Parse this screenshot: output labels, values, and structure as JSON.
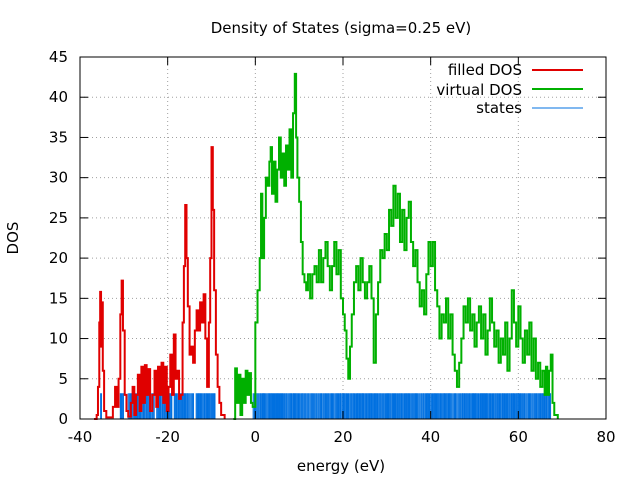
{
  "chart_data": {
    "type": "line",
    "title": "Density of States (sigma=0.25 eV)",
    "xlabel": "energy (eV)",
    "ylabel": "DOS",
    "xlim": [
      -40,
      80
    ],
    "ylim": [
      0,
      45
    ],
    "x_ticks": [
      -40,
      -20,
      0,
      20,
      40,
      60,
      80
    ],
    "y_ticks": [
      0,
      5,
      10,
      15,
      20,
      25,
      30,
      35,
      40,
      45
    ],
    "grid": true,
    "legend_position": "top-right",
    "series": [
      {
        "name": "filled DOS",
        "color": "#e00000",
        "style": "line",
        "points": [
          [
            -36.8,
            0
          ],
          [
            -36.2,
            0.5
          ],
          [
            -35.9,
            4
          ],
          [
            -35.6,
            12
          ],
          [
            -35.4,
            15.8
          ],
          [
            -35.2,
            9
          ],
          [
            -35.0,
            14.5
          ],
          [
            -34.8,
            6
          ],
          [
            -34.5,
            1
          ],
          [
            -34.0,
            0.2
          ],
          [
            -33.0,
            0.2
          ],
          [
            -32.5,
            1.5
          ],
          [
            -32.0,
            4
          ],
          [
            -31.6,
            1.5
          ],
          [
            -31.2,
            5
          ],
          [
            -30.8,
            13
          ],
          [
            -30.5,
            17.2
          ],
          [
            -30.2,
            11
          ],
          [
            -29.8,
            3
          ],
          [
            -29.4,
            1
          ],
          [
            -29.0,
            0.3
          ],
          [
            -28.4,
            2
          ],
          [
            -28.0,
            4
          ],
          [
            -27.6,
            0.5
          ],
          [
            -27.2,
            3
          ],
          [
            -26.8,
            5.5
          ],
          [
            -26.4,
            1
          ],
          [
            -26.0,
            6.5
          ],
          [
            -25.6,
            2
          ],
          [
            -25.2,
            6.7
          ],
          [
            -24.8,
            3
          ],
          [
            -24.4,
            6.2
          ],
          [
            -24.0,
            1
          ],
          [
            -23.5,
            3
          ],
          [
            -23.0,
            6
          ],
          [
            -22.6,
            1.5
          ],
          [
            -22.2,
            6.5
          ],
          [
            -21.8,
            3
          ],
          [
            -21.4,
            7
          ],
          [
            -21.0,
            2
          ],
          [
            -20.6,
            6.5
          ],
          [
            -20.2,
            1
          ],
          [
            -19.8,
            4
          ],
          [
            -19.4,
            8
          ],
          [
            -19.0,
            3
          ],
          [
            -18.6,
            10.5
          ],
          [
            -18.2,
            5
          ],
          [
            -17.8,
            6
          ],
          [
            -17.4,
            2.5
          ],
          [
            -17.0,
            3
          ],
          [
            -16.6,
            12
          ],
          [
            -16.3,
            19
          ],
          [
            -16.0,
            26.6
          ],
          [
            -15.7,
            20
          ],
          [
            -15.4,
            14
          ],
          [
            -15.0,
            8
          ],
          [
            -14.6,
            9
          ],
          [
            -14.2,
            7
          ],
          [
            -13.8,
            11
          ],
          [
            -13.4,
            13.5
          ],
          [
            -13.0,
            11
          ],
          [
            -12.6,
            14.5
          ],
          [
            -12.2,
            12
          ],
          [
            -11.8,
            15.5
          ],
          [
            -11.4,
            10
          ],
          [
            -11.0,
            4
          ],
          [
            -10.6,
            12
          ],
          [
            -10.3,
            20
          ],
          [
            -10.0,
            33.8
          ],
          [
            -9.7,
            26
          ],
          [
            -9.4,
            16
          ],
          [
            -9.0,
            8
          ],
          [
            -8.6,
            4
          ],
          [
            -8.2,
            2
          ],
          [
            -7.8,
            0.5
          ],
          [
            -7.0,
            0
          ]
        ]
      },
      {
        "name": "virtual DOS",
        "color": "#00b000",
        "style": "line",
        "points": [
          [
            -5.0,
            0
          ],
          [
            -4.6,
            6.3
          ],
          [
            -4.2,
            2
          ],
          [
            -3.8,
            5.5
          ],
          [
            -3.4,
            0.5
          ],
          [
            -3.0,
            5
          ],
          [
            -2.6,
            2
          ],
          [
            -2.2,
            6
          ],
          [
            -1.8,
            3
          ],
          [
            -1.4,
            5.7
          ],
          [
            -1.0,
            2
          ],
          [
            -0.6,
            1.5
          ],
          [
            0.0,
            12
          ],
          [
            0.5,
            16
          ],
          [
            1.0,
            20
          ],
          [
            1.3,
            28
          ],
          [
            1.6,
            20
          ],
          [
            2.0,
            25
          ],
          [
            2.4,
            30
          ],
          [
            2.8,
            29
          ],
          [
            3.2,
            32
          ],
          [
            3.5,
            33.8
          ],
          [
            3.8,
            28
          ],
          [
            4.2,
            32
          ],
          [
            4.6,
            27
          ],
          [
            5.0,
            31
          ],
          [
            5.4,
            35
          ],
          [
            5.8,
            30
          ],
          [
            6.2,
            33
          ],
          [
            6.6,
            29
          ],
          [
            7.0,
            34
          ],
          [
            7.4,
            31
          ],
          [
            7.8,
            36
          ],
          [
            8.2,
            30
          ],
          [
            8.6,
            38
          ],
          [
            9.0,
            42.9
          ],
          [
            9.3,
            35
          ],
          [
            9.6,
            30
          ],
          [
            10.0,
            27
          ],
          [
            10.4,
            22
          ],
          [
            10.8,
            18
          ],
          [
            11.2,
            17
          ],
          [
            11.6,
            16
          ],
          [
            12.0,
            18
          ],
          [
            12.5,
            15
          ],
          [
            13.0,
            18
          ],
          [
            13.5,
            19
          ],
          [
            14.0,
            17
          ],
          [
            14.5,
            21
          ],
          [
            15.0,
            17
          ],
          [
            15.5,
            20
          ],
          [
            16.0,
            22
          ],
          [
            16.5,
            19
          ],
          [
            17.0,
            16
          ],
          [
            17.5,
            19
          ],
          [
            18.0,
            22
          ],
          [
            18.5,
            18
          ],
          [
            19.0,
            21
          ],
          [
            19.5,
            15
          ],
          [
            20.0,
            13
          ],
          [
            20.4,
            11
          ],
          [
            20.8,
            7.5
          ],
          [
            21.2,
            5
          ],
          [
            21.6,
            9
          ],
          [
            22.0,
            13
          ],
          [
            22.5,
            17
          ],
          [
            23.0,
            19
          ],
          [
            23.5,
            16
          ],
          [
            24.0,
            20
          ],
          [
            24.5,
            17
          ],
          [
            25.0,
            15
          ],
          [
            25.5,
            17
          ],
          [
            26.0,
            19
          ],
          [
            26.5,
            15
          ],
          [
            27.0,
            7
          ],
          [
            27.5,
            13
          ],
          [
            28.0,
            17
          ],
          [
            28.5,
            21
          ],
          [
            29.0,
            20
          ],
          [
            29.5,
            23
          ],
          [
            30.0,
            21
          ],
          [
            30.5,
            26
          ],
          [
            31.0,
            24
          ],
          [
            31.5,
            29
          ],
          [
            32.0,
            25
          ],
          [
            32.5,
            28
          ],
          [
            33.0,
            22
          ],
          [
            33.5,
            26
          ],
          [
            34.0,
            21
          ],
          [
            34.5,
            25
          ],
          [
            35.0,
            27
          ],
          [
            35.5,
            22
          ],
          [
            36.0,
            19
          ],
          [
            36.5,
            21
          ],
          [
            37.0,
            17
          ],
          [
            37.5,
            14
          ],
          [
            38.0,
            16
          ],
          [
            38.5,
            13
          ],
          [
            39.0,
            18
          ],
          [
            39.5,
            22
          ],
          [
            40.0,
            19
          ],
          [
            40.5,
            22
          ],
          [
            41.0,
            16
          ],
          [
            41.5,
            14
          ],
          [
            42.0,
            10
          ],
          [
            42.5,
            13
          ],
          [
            43.0,
            12
          ],
          [
            43.5,
            15
          ],
          [
            44.0,
            10
          ],
          [
            44.5,
            13
          ],
          [
            45.0,
            8
          ],
          [
            45.5,
            6
          ],
          [
            46.0,
            4
          ],
          [
            46.5,
            7
          ],
          [
            47.0,
            10
          ],
          [
            47.5,
            14
          ],
          [
            48.0,
            12
          ],
          [
            48.5,
            15
          ],
          [
            49.0,
            11
          ],
          [
            49.5,
            13
          ],
          [
            50.0,
            9
          ],
          [
            50.5,
            12
          ],
          [
            51.0,
            14
          ],
          [
            51.5,
            10
          ],
          [
            52.0,
            13
          ],
          [
            52.5,
            8
          ],
          [
            53.0,
            11
          ],
          [
            53.5,
            15
          ],
          [
            54.0,
            12
          ],
          [
            54.5,
            9
          ],
          [
            55.0,
            11
          ],
          [
            55.5,
            7
          ],
          [
            56.0,
            10
          ],
          [
            56.5,
            8
          ],
          [
            57.0,
            12
          ],
          [
            57.5,
            6
          ],
          [
            58.0,
            10
          ],
          [
            58.5,
            16
          ],
          [
            59.0,
            12
          ],
          [
            59.5,
            9
          ],
          [
            60.0,
            14
          ],
          [
            60.5,
            10
          ],
          [
            61.0,
            7
          ],
          [
            61.5,
            11
          ],
          [
            62.0,
            8
          ],
          [
            62.5,
            12
          ],
          [
            63.0,
            6
          ],
          [
            63.5,
            10
          ],
          [
            64.0,
            5
          ],
          [
            64.5,
            7
          ],
          [
            65.0,
            4
          ],
          [
            65.5,
            6
          ],
          [
            66.0,
            3
          ],
          [
            66.3,
            6.5
          ],
          [
            66.6,
            3
          ],
          [
            67.0,
            6
          ],
          [
            67.4,
            8
          ],
          [
            67.8,
            2
          ],
          [
            68.2,
            0.5
          ],
          [
            69.0,
            0
          ]
        ]
      },
      {
        "name": "states",
        "color": "#0070e0",
        "style": "impulses",
        "height": 3.2,
        "ranges": [
          [
            -35.3,
            -34.9
          ],
          [
            -30.8,
            -30.0
          ],
          [
            -29.0,
            -23.0
          ],
          [
            -22.5,
            -19.0
          ],
          [
            -18.5,
            -14.0
          ],
          [
            -13.5,
            -9.0
          ],
          [
            -0.5,
            67.5
          ]
        ]
      }
    ]
  }
}
